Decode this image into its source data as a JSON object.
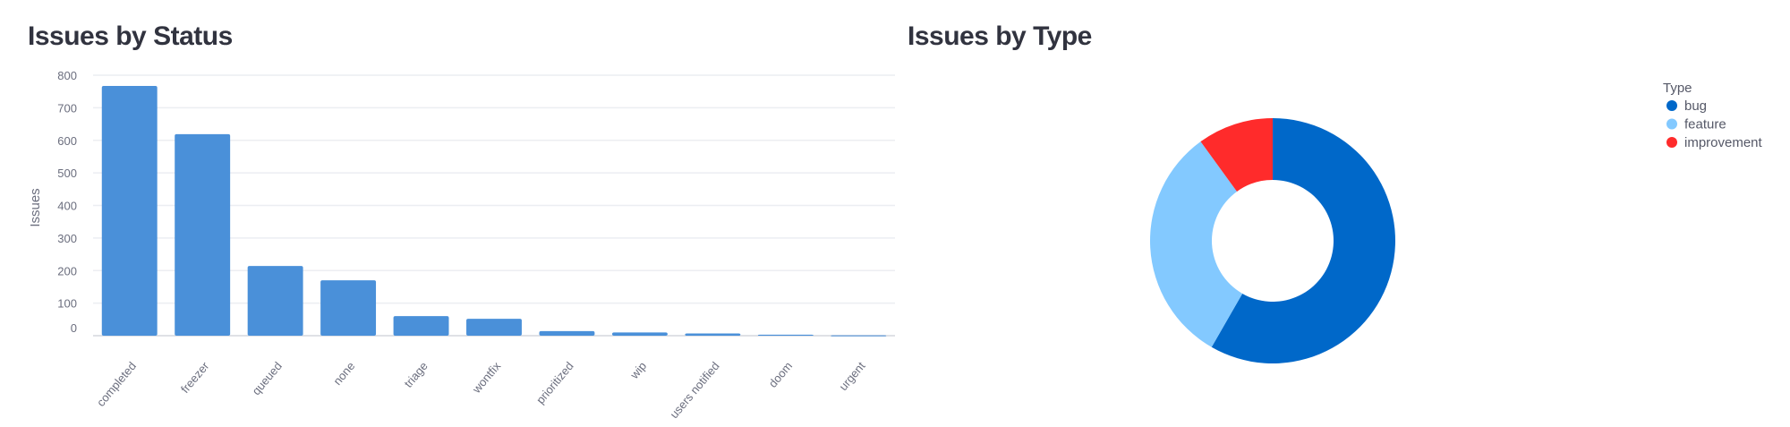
{
  "chart_data": [
    {
      "type": "bar",
      "title": "Issues by Status",
      "xlabel": "",
      "ylabel": "Issues",
      "ylim": [
        0,
        800
      ],
      "yticks": [
        0,
        100,
        200,
        300,
        400,
        500,
        600,
        700,
        800
      ],
      "grid": true,
      "color": "#4a90d9",
      "categories": [
        "completed",
        "freezer",
        "queued",
        "none",
        "triage",
        "wontfix",
        "prioritized",
        "wip",
        "users notified",
        "doom",
        "urgent"
      ],
      "values": [
        767,
        619,
        214,
        170,
        60,
        52,
        14,
        10,
        7,
        3,
        1
      ]
    },
    {
      "type": "pie",
      "title": "Issues by Type",
      "donut": true,
      "legend_title": "Type",
      "legend_position": "top-right",
      "categories": [
        "bug",
        "feature",
        "improvement"
      ],
      "values": [
        58.3,
        31.7,
        10.0
      ],
      "colors": [
        "#0068c9",
        "#83c9ff",
        "#ff2b2b"
      ]
    }
  ]
}
